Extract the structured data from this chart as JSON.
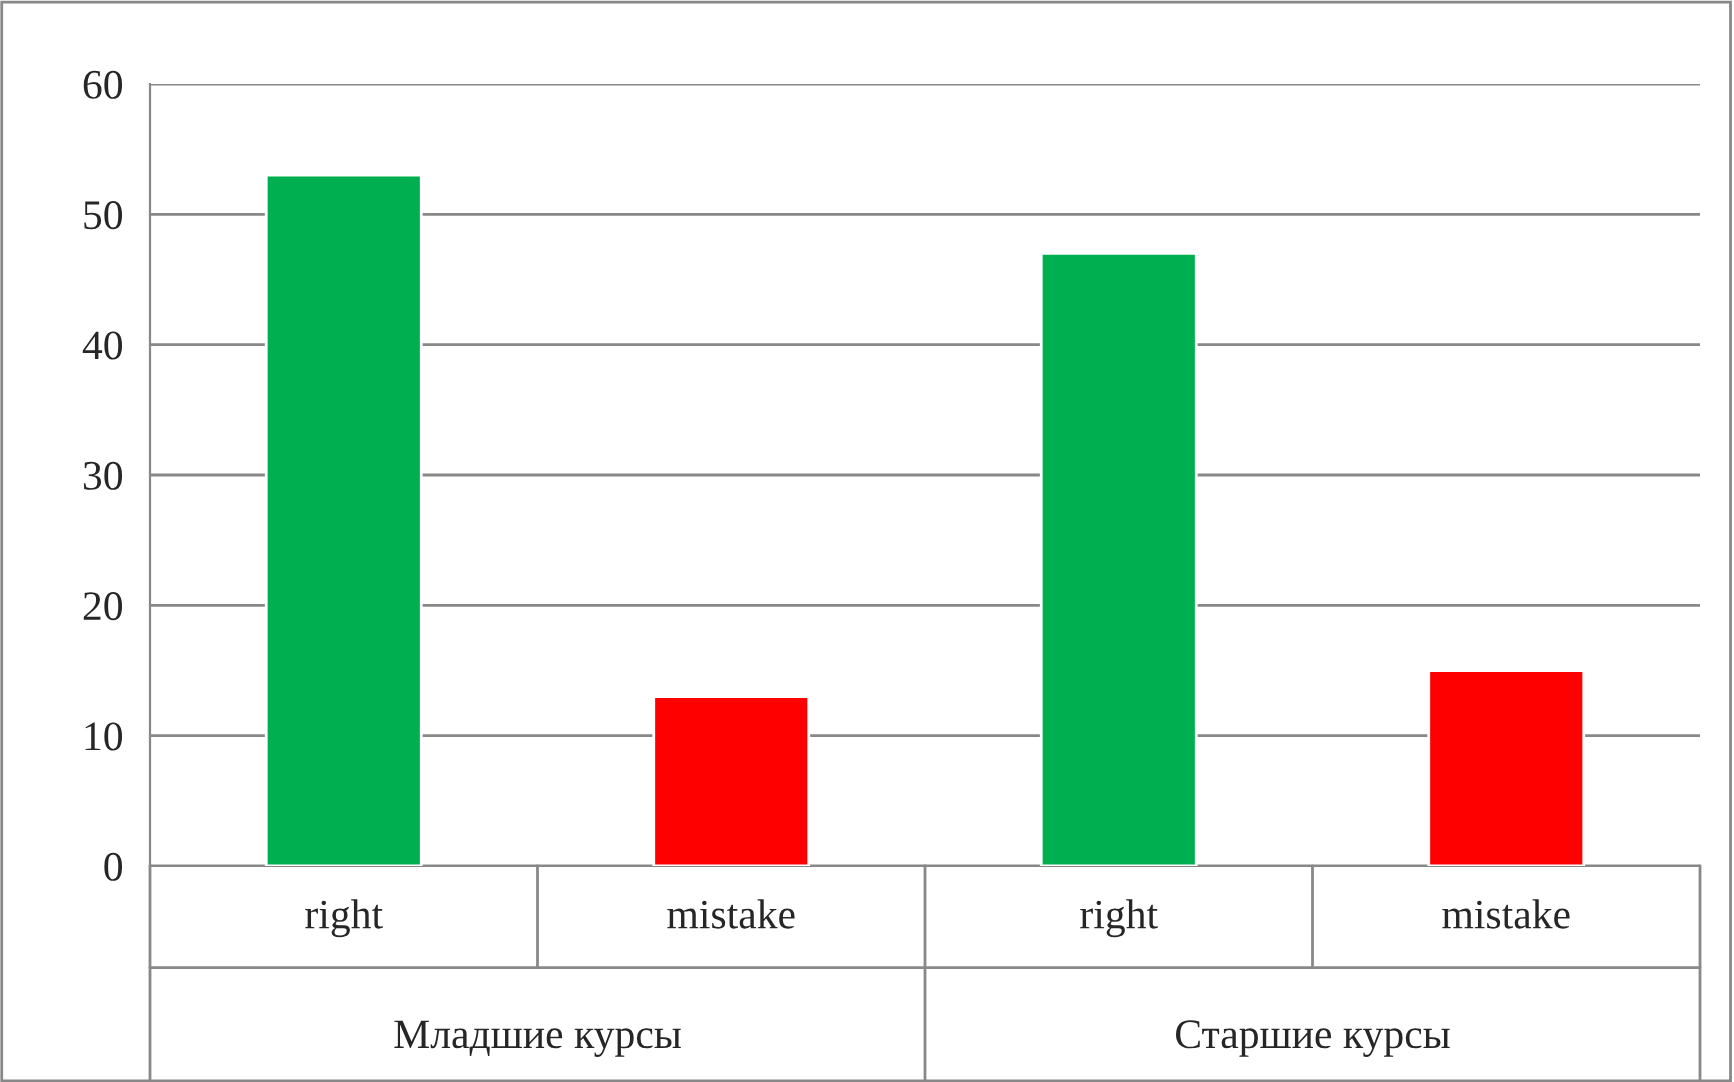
{
  "chart_data": {
    "type": "bar",
    "categories": [
      "right",
      "mistake",
      "right",
      "mistake"
    ],
    "values": [
      53,
      13,
      47,
      15
    ],
    "colors": [
      "#00b050",
      "#ff0000",
      "#00b050",
      "#ff0000"
    ],
    "ylim": [
      0,
      60
    ],
    "yticks": [
      0,
      10,
      20,
      30,
      40,
      50,
      60
    ],
    "grid": "y",
    "annotations": [
      "Младшие курсы",
      "Старшие курсы"
    ]
  }
}
